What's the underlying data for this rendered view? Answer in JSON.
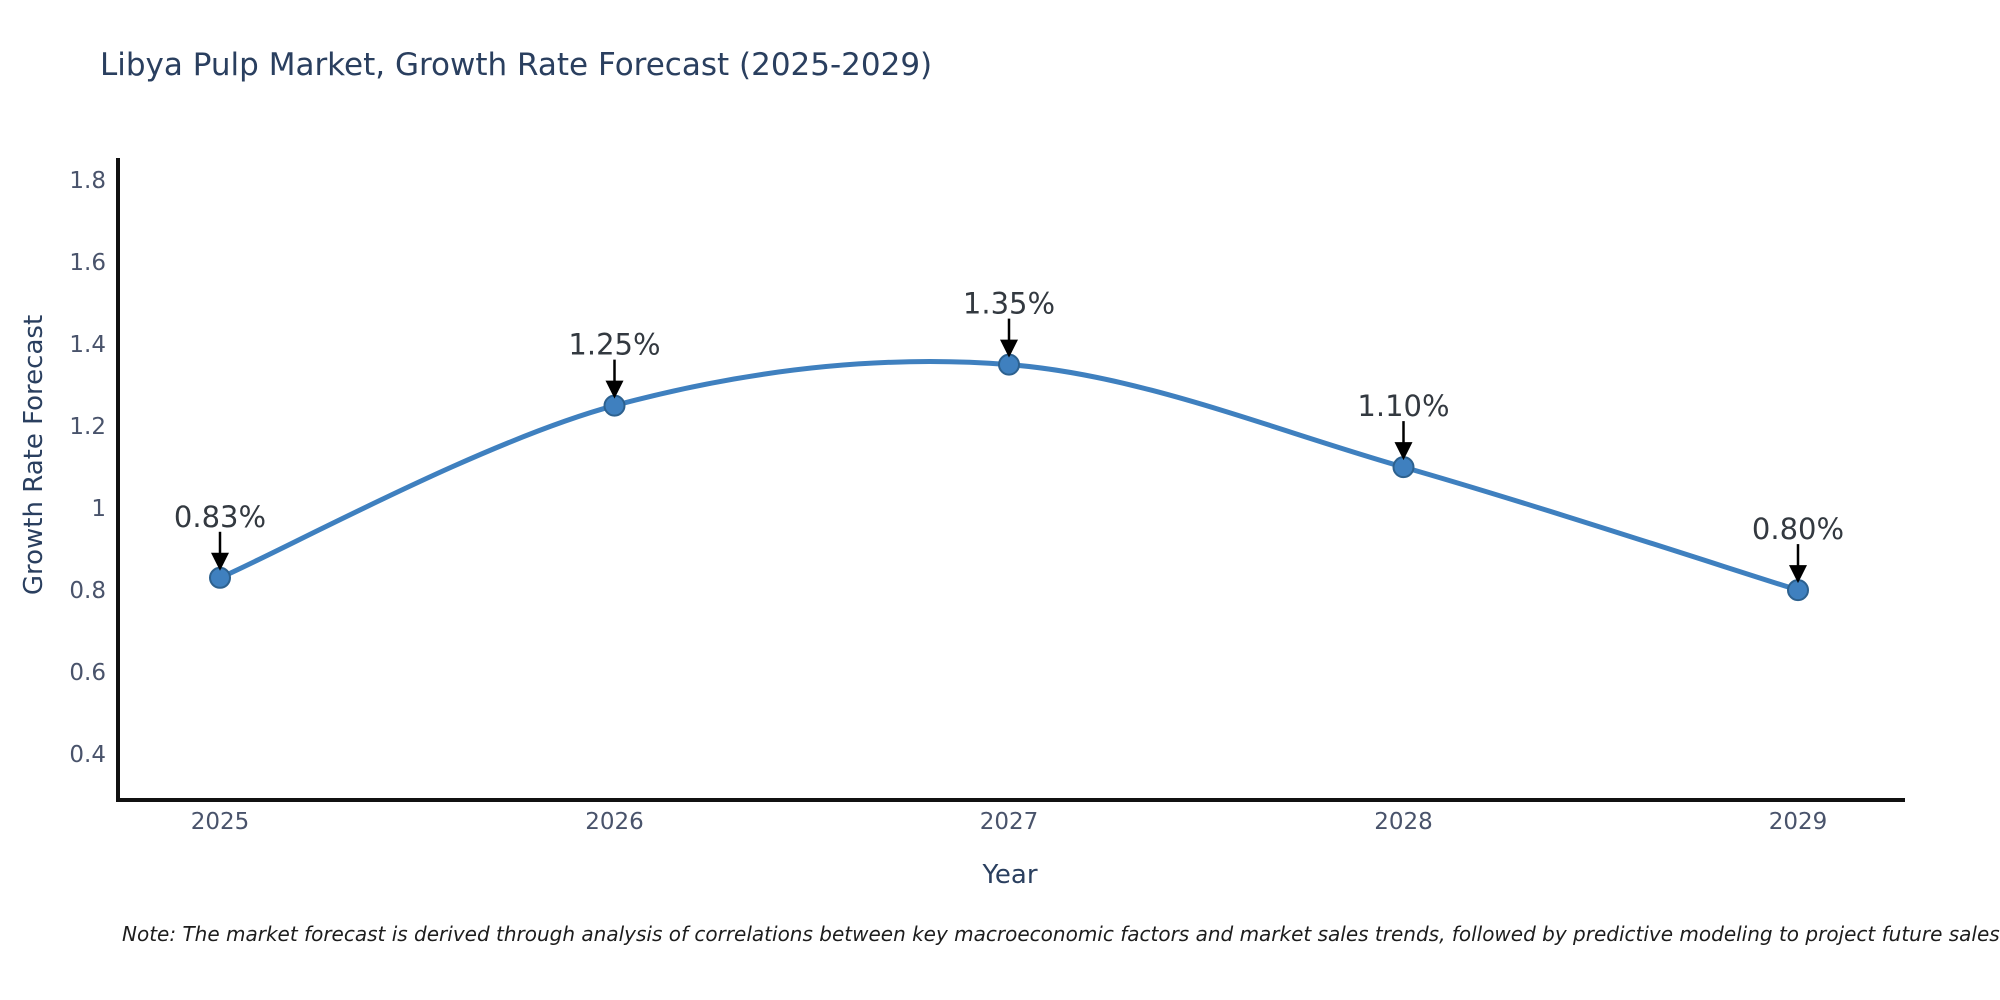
{
  "title": "Libya Pulp Market, Growth Rate Forecast (2025-2029)",
  "note": "Note: The market forecast is derived through analysis of correlations between key macroeconomic factors and market sales trends, followed by predictive modeling to project future sales",
  "chart_data": {
    "type": "line",
    "title": "Libya Pulp Market, Growth Rate Forecast (2025-2029)",
    "x_categories": [
      "2025",
      "2026",
      "2027",
      "2028",
      "2029"
    ],
    "series": [
      {
        "name": "Growth Rate Forecast",
        "values": [
          0.83,
          1.25,
          1.35,
          1.1,
          0.8
        ],
        "point_labels": [
          "0.83%",
          "1.25%",
          "1.35%",
          "1.10%",
          "0.80%"
        ]
      }
    ],
    "xlabel": "Year",
    "ylabel": "Growth Rate Forecast",
    "ytick_labels": [
      "1.8",
      "1.6",
      "1.4",
      "1.2",
      "1",
      "0.8",
      "0.6",
      "0.4"
    ],
    "ytick_values": [
      1.8,
      1.6,
      1.4,
      1.2,
      1.0,
      0.8,
      0.6,
      0.4
    ],
    "ylim": [
      0.288,
      1.854
    ],
    "line_shape": "spline",
    "grid": false,
    "legend": false,
    "line_color": "#3f80bf",
    "marker_color": "#3f80bf",
    "marker_edge_color": "#2d618f",
    "annotation_arrow_color": "#000000",
    "annotation_text_color": "#333940",
    "axis_color": "#111111",
    "tick_color": "#49536b",
    "title_color": "#2a3f5f"
  }
}
